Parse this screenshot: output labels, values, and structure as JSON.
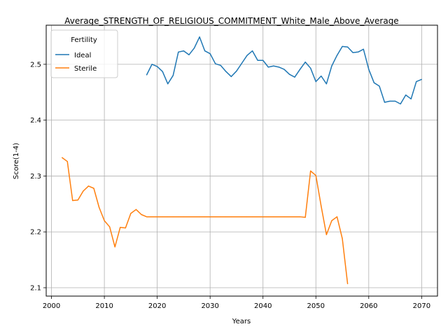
{
  "chart_data": {
    "type": "line",
    "title": "Average_STRENGTH_OF_RELIGIOUS_COMMITMENT_White_Male_Above_Average",
    "xlabel": "Years",
    "ylabel": "Score(1-4)",
    "xlim": [
      1999,
      2073
    ],
    "ylim": [
      2.085,
      2.57
    ],
    "xticks": [
      2000,
      2010,
      2020,
      2030,
      2040,
      2050,
      2060,
      2070
    ],
    "yticks": [
      2.1,
      2.2,
      2.3,
      2.4,
      2.5
    ],
    "ytick_labels": [
      "2.1",
      "2.2",
      "2.3",
      "2.4",
      "2.5"
    ],
    "grid": true,
    "legend": {
      "title": "Fertility",
      "placement": "top-left"
    },
    "series": [
      {
        "name": "Ideal",
        "color": "#1f77b4",
        "x": [
          2018,
          2019,
          2020,
          2021,
          2022,
          2023,
          2024,
          2025,
          2026,
          2027,
          2028,
          2029,
          2030,
          2031,
          2032,
          2033,
          2034,
          2035,
          2036,
          2037,
          2038,
          2039,
          2040,
          2041,
          2042,
          2043,
          2044,
          2045,
          2046,
          2047,
          2048,
          2049,
          2050,
          2051,
          2052,
          2053,
          2054,
          2055,
          2056,
          2057,
          2058,
          2059,
          2060,
          2061,
          2062,
          2063,
          2064,
          2065,
          2066,
          2067,
          2068,
          2069,
          2070
        ],
        "y": [
          2.481,
          2.5,
          2.496,
          2.487,
          2.465,
          2.48,
          2.522,
          2.524,
          2.517,
          2.529,
          2.549,
          2.524,
          2.519,
          2.501,
          2.498,
          2.487,
          2.478,
          2.488,
          2.502,
          2.516,
          2.524,
          2.507,
          2.507,
          2.495,
          2.497,
          2.495,
          2.491,
          2.482,
          2.477,
          2.491,
          2.504,
          2.493,
          2.469,
          2.479,
          2.465,
          2.497,
          2.516,
          2.532,
          2.531,
          2.521,
          2.522,
          2.527,
          2.491,
          2.467,
          2.461,
          2.432,
          2.434,
          2.434,
          2.429,
          2.445,
          2.438,
          2.469,
          2.473
        ]
      },
      {
        "name": "Sterile",
        "color": "#ff7f0e",
        "x": [
          2002,
          2003,
          2004,
          2005,
          2006,
          2007,
          2008,
          2009,
          2010,
          2011,
          2012,
          2013,
          2014,
          2015,
          2016,
          2017,
          2018,
          2019,
          2020,
          2021,
          2022,
          2023,
          2024,
          2025,
          2026,
          2027,
          2028,
          2029,
          2030,
          2031,
          2032,
          2033,
          2034,
          2035,
          2036,
          2037,
          2038,
          2039,
          2040,
          2041,
          2042,
          2043,
          2044,
          2045,
          2046,
          2047,
          2048,
          2049,
          2050,
          2051,
          2052,
          2053,
          2054,
          2055,
          2056
        ],
        "y": [
          2.333,
          2.326,
          2.256,
          2.257,
          2.273,
          2.282,
          2.278,
          2.244,
          2.22,
          2.209,
          2.173,
          2.208,
          2.207,
          2.233,
          2.24,
          2.231,
          2.227,
          2.227,
          2.227,
          2.227,
          2.227,
          2.227,
          2.227,
          2.227,
          2.227,
          2.227,
          2.227,
          2.227,
          2.227,
          2.227,
          2.227,
          2.227,
          2.227,
          2.227,
          2.227,
          2.227,
          2.227,
          2.227,
          2.227,
          2.227,
          2.227,
          2.227,
          2.227,
          2.227,
          2.227,
          2.227,
          2.226,
          2.309,
          2.301,
          2.246,
          2.195,
          2.22,
          2.227,
          2.188,
          2.107
        ]
      }
    ]
  }
}
